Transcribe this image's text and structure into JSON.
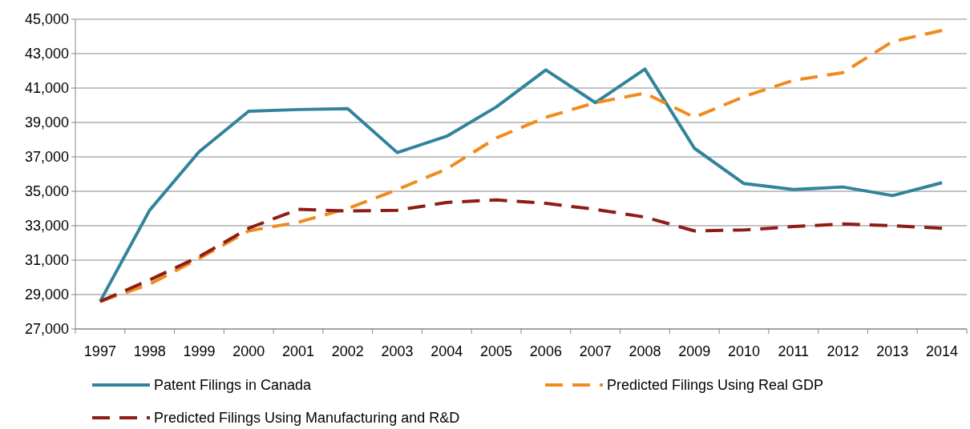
{
  "chart_data": {
    "type": "line",
    "categories": [
      "1997",
      "1998",
      "1999",
      "2000",
      "2001",
      "2002",
      "2003",
      "2004",
      "2005",
      "2006",
      "2007",
      "2008",
      "2009",
      "2010",
      "2011",
      "2012",
      "2013",
      "2014"
    ],
    "series": [
      {
        "name": "Patent Filings in Canada",
        "color": "#31849b",
        "line_style": "solid",
        "values": [
          28600,
          33900,
          37300,
          39650,
          39750,
          39800,
          37250,
          38200,
          39900,
          42050,
          40150,
          42100,
          37500,
          35450,
          35100,
          35250,
          34750,
          35500
        ]
      },
      {
        "name": "Predicted Filings Using Real GDP",
        "color": "#f18b1e",
        "line_style": "dashed",
        "values": [
          28600,
          29600,
          31100,
          32700,
          33200,
          34000,
          35100,
          36300,
          38100,
          39300,
          40150,
          40700,
          39300,
          40500,
          41450,
          41900,
          43700,
          44350
        ]
      },
      {
        "name": "Predicted Filings Using Manufacturing and R&D",
        "color": "#8e1d17",
        "line_style": "dashed",
        "values": [
          28600,
          29850,
          31200,
          32850,
          33950,
          33850,
          33900,
          34350,
          34500,
          34300,
          33950,
          33500,
          32700,
          32750,
          32950,
          33100,
          33000,
          32850
        ]
      }
    ],
    "ylim": [
      27000,
      45000
    ],
    "yticks": [
      {
        "value": 27000,
        "label": "27,000"
      },
      {
        "value": 29000,
        "label": "29,000"
      },
      {
        "value": 31000,
        "label": "31,000"
      },
      {
        "value": 33000,
        "label": "33,000"
      },
      {
        "value": 35000,
        "label": "35,000"
      },
      {
        "value": 37000,
        "label": "37,000"
      },
      {
        "value": 39000,
        "label": "39,000"
      },
      {
        "value": 41000,
        "label": "41,000"
      },
      {
        "value": 43000,
        "label": "43,000"
      },
      {
        "value": 45000,
        "label": "45,000"
      }
    ],
    "grid": "y",
    "legend": "bottom",
    "marker": "none"
  }
}
